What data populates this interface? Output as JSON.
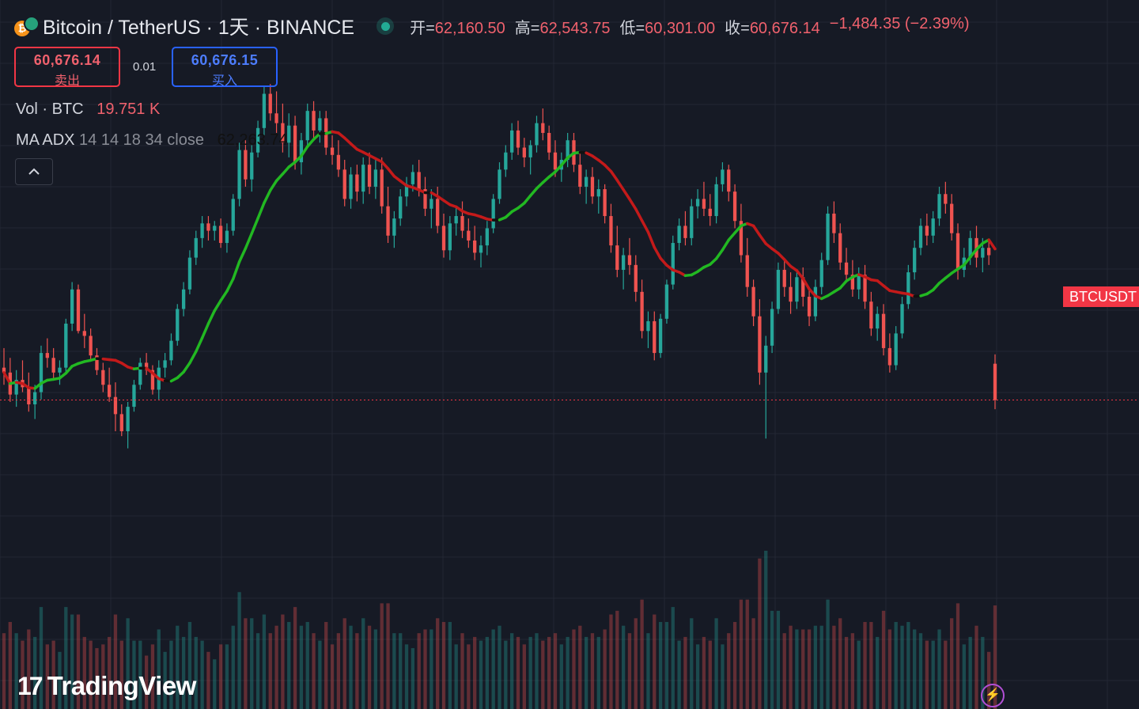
{
  "header": {
    "title": "Bitcoin / TetherUS · 1天 · BINANCE",
    "open_label": "开=",
    "open": "62,160.50",
    "high_label": "高=",
    "high": "62,543.75",
    "low_label": "低=",
    "low": "60,301.00",
    "close_label": "收=",
    "close": "60,676.14",
    "change": "−1,484.35 (−2.39%)"
  },
  "trade": {
    "sell_price": "60,676.14",
    "sell_label": "卖出",
    "spread": "0.01",
    "buy_price": "60,676.15",
    "buy_label": "买入"
  },
  "indicators": {
    "vol_name": "Vol · BTC",
    "vol_value": "19.751 K",
    "ma_name": "MA ADX",
    "ma_params": "14 14 18 34 close",
    "ma_value": "62,263.74",
    "collapse_icon": "chevron-up-icon"
  },
  "price_tag": "BTCUSDT",
  "logo": "TradingView",
  "colors": {
    "background": "#161a25",
    "up": "#26a69a",
    "down": "#ef5350",
    "ma_up": "#22b822",
    "ma_down": "#c41a1a",
    "ma_neutral": "#111111",
    "price_line": "#f23645"
  },
  "chart_data": {
    "type": "candlestick",
    "x_unit": "day (1天)",
    "y_unit": "USDT",
    "ylim": [
      50500,
      73800
    ],
    "last_price": 60676.14,
    "grid": true,
    "candles": [
      [
        62000,
        62800,
        61300,
        61800
      ],
      [
        61800,
        62400,
        60600,
        60900
      ],
      [
        60900,
        61900,
        60400,
        61500
      ],
      [
        61500,
        62300,
        61000,
        61200
      ],
      [
        61200,
        61800,
        60200,
        60500
      ],
      [
        60500,
        61300,
        59900,
        61000
      ],
      [
        61000,
        62900,
        60700,
        62600
      ],
      [
        62600,
        63200,
        62000,
        62400
      ],
      [
        62400,
        62800,
        61500,
        61800
      ],
      [
        61800,
        62300,
        61300,
        62000
      ],
      [
        62000,
        64000,
        61800,
        63800
      ],
      [
        63800,
        65500,
        63500,
        65200
      ],
      [
        65200,
        65400,
        63400,
        63500
      ],
      [
        63500,
        64200,
        62800,
        63300
      ],
      [
        63300,
        63600,
        62300,
        62500
      ],
      [
        62500,
        62800,
        61700,
        61900
      ],
      [
        61900,
        62200,
        61000,
        61300
      ],
      [
        61300,
        62000,
        60600,
        60800
      ],
      [
        60800,
        61400,
        59400,
        60100
      ],
      [
        60100,
        60500,
        59200,
        59400
      ],
      [
        59400,
        60600,
        58700,
        60400
      ],
      [
        60400,
        61500,
        60200,
        61300
      ],
      [
        61300,
        62400,
        61100,
        62200
      ],
      [
        62200,
        62600,
        61700,
        61900
      ],
      [
        61900,
        62100,
        60900,
        61100
      ],
      [
        61100,
        62300,
        60700,
        62000
      ],
      [
        62000,
        62600,
        61600,
        62300
      ],
      [
        62300,
        63400,
        62100,
        63100
      ],
      [
        63100,
        64600,
        62900,
        64400
      ],
      [
        64400,
        65500,
        64100,
        65200
      ],
      [
        65200,
        66800,
        65000,
        66500
      ],
      [
        66500,
        67600,
        66200,
        67300
      ],
      [
        67300,
        68200,
        66900,
        67900
      ],
      [
        67900,
        68200,
        67200,
        67600
      ],
      [
        67600,
        68000,
        67200,
        67800
      ],
      [
        67800,
        68100,
        66900,
        67100
      ],
      [
        67100,
        67900,
        66700,
        67600
      ],
      [
        67600,
        69100,
        67400,
        68900
      ],
      [
        68900,
        71200,
        68600,
        70900
      ],
      [
        70900,
        71300,
        69400,
        69700
      ],
      [
        69700,
        71100,
        69200,
        70800
      ],
      [
        70800,
        72100,
        70600,
        71800
      ],
      [
        71800,
        73500,
        71500,
        73200
      ],
      [
        73200,
        73600,
        72100,
        72400
      ],
      [
        72400,
        73300,
        71600,
        72000
      ],
      [
        72000,
        72800,
        70800,
        71200
      ],
      [
        71200,
        72400,
        70600,
        71900
      ],
      [
        71900,
        72300,
        70100,
        70400
      ],
      [
        70400,
        71600,
        69900,
        71300
      ],
      [
        71300,
        72800,
        71000,
        72500
      ],
      [
        72500,
        72900,
        71400,
        71700
      ],
      [
        71700,
        72500,
        71200,
        72200
      ],
      [
        72200,
        72500,
        70700,
        71000
      ],
      [
        71000,
        71500,
        70300,
        70700
      ],
      [
        70700,
        71300,
        69800,
        70100
      ],
      [
        70100,
        70500,
        68600,
        68900
      ],
      [
        68900,
        70200,
        68500,
        69900
      ],
      [
        69900,
        70300,
        68800,
        69200
      ],
      [
        69200,
        70600,
        68700,
        70300
      ],
      [
        70300,
        70800,
        69100,
        69400
      ],
      [
        69400,
        70500,
        68900,
        70100
      ],
      [
        70100,
        70600,
        68300,
        68600
      ],
      [
        68600,
        69400,
        67100,
        67400
      ],
      [
        67400,
        68400,
        66900,
        68100
      ],
      [
        68100,
        69300,
        67800,
        69000
      ],
      [
        69000,
        69800,
        68600,
        69500
      ],
      [
        69500,
        70300,
        69200,
        70000
      ],
      [
        70000,
        70500,
        69000,
        69300
      ],
      [
        69300,
        69800,
        68200,
        68500
      ],
      [
        68500,
        69300,
        67700,
        68900
      ],
      [
        68900,
        69400,
        67500,
        67800
      ],
      [
        67800,
        68300,
        66500,
        66800
      ],
      [
        66800,
        68200,
        66400,
        67900
      ],
      [
        67900,
        68600,
        67400,
        68200
      ],
      [
        68200,
        68800,
        67300,
        67600
      ],
      [
        67600,
        68100,
        66900,
        67200
      ],
      [
        67200,
        67800,
        66400,
        66700
      ],
      [
        66700,
        67400,
        66100,
        67000
      ],
      [
        67000,
        68000,
        66600,
        67700
      ],
      [
        67700,
        69100,
        67500,
        68900
      ],
      [
        68900,
        70400,
        68700,
        70100
      ],
      [
        70100,
        71100,
        69800,
        70800
      ],
      [
        70800,
        72000,
        70500,
        71700
      ],
      [
        71700,
        72100,
        70700,
        71000
      ],
      [
        71000,
        71400,
        70200,
        70600
      ],
      [
        70600,
        71300,
        69900,
        71100
      ],
      [
        71100,
        72300,
        70800,
        72000
      ],
      [
        72000,
        72600,
        71300,
        71600
      ],
      [
        71600,
        71900,
        70500,
        70800
      ],
      [
        70800,
        71300,
        69800,
        70100
      ],
      [
        70100,
        70800,
        69600,
        70500
      ],
      [
        70500,
        71600,
        70200,
        71300
      ],
      [
        71300,
        71600,
        70000,
        70300
      ],
      [
        70300,
        70800,
        69100,
        69400
      ],
      [
        69400,
        70100,
        68700,
        69800
      ],
      [
        69800,
        70200,
        68700,
        69000
      ],
      [
        69000,
        69700,
        68300,
        69300
      ],
      [
        69300,
        69500,
        67900,
        68200
      ],
      [
        68200,
        68700,
        66700,
        67000
      ],
      [
        67000,
        67800,
        65700,
        66000
      ],
      [
        66000,
        66900,
        65200,
        66600
      ],
      [
        66600,
        67300,
        65800,
        66200
      ],
      [
        66200,
        66600,
        64700,
        65100
      ],
      [
        65100,
        65600,
        63200,
        63500
      ],
      [
        63500,
        64300,
        62800,
        63900
      ],
      [
        63900,
        64300,
        62300,
        62600
      ],
      [
        62600,
        64200,
        62400,
        64000
      ],
      [
        64000,
        65600,
        63800,
        65400
      ],
      [
        65400,
        67400,
        65200,
        67100
      ],
      [
        67100,
        68100,
        66800,
        67800
      ],
      [
        67800,
        68400,
        67000,
        67300
      ],
      [
        67300,
        68900,
        67000,
        68600
      ],
      [
        68600,
        69300,
        68100,
        68900
      ],
      [
        68900,
        69600,
        68200,
        68500
      ],
      [
        68500,
        69100,
        67800,
        68200
      ],
      [
        68200,
        69800,
        67900,
        69500
      ],
      [
        69500,
        70400,
        69200,
        70100
      ],
      [
        70100,
        70300,
        68800,
        69200
      ],
      [
        69200,
        69500,
        67700,
        68000
      ],
      [
        68000,
        68700,
        66300,
        66600
      ],
      [
        66600,
        67300,
        64900,
        65300
      ],
      [
        65300,
        65600,
        63700,
        64100
      ],
      [
        64100,
        64800,
        61300,
        61800
      ],
      [
        61800,
        63300,
        59100,
        62900
      ],
      [
        62900,
        64700,
        62600,
        64400
      ],
      [
        64400,
        66300,
        64200,
        66000
      ],
      [
        66000,
        66400,
        64900,
        65300
      ],
      [
        65300,
        65900,
        64200,
        64700
      ],
      [
        64700,
        66000,
        64400,
        65700
      ],
      [
        65700,
        66100,
        64500,
        64900
      ],
      [
        64900,
        65300,
        63700,
        64100
      ],
      [
        64100,
        65600,
        63900,
        65300
      ],
      [
        65300,
        66700,
        65000,
        66400
      ],
      [
        66400,
        68600,
        66200,
        68300
      ],
      [
        68300,
        68800,
        67100,
        67500
      ],
      [
        67500,
        67900,
        66000,
        66300
      ],
      [
        66300,
        66900,
        65500,
        65800
      ],
      [
        65800,
        66400,
        64900,
        65200
      ],
      [
        65200,
        66100,
        64800,
        65800
      ],
      [
        65800,
        66200,
        64400,
        64700
      ],
      [
        64700,
        65100,
        63300,
        63600
      ],
      [
        63600,
        64500,
        63100,
        64200
      ],
      [
        64200,
        64600,
        62500,
        62800
      ],
      [
        62800,
        63400,
        61800,
        62100
      ],
      [
        62100,
        63700,
        61900,
        63400
      ],
      [
        63400,
        64900,
        63200,
        64600
      ],
      [
        64600,
        66200,
        64400,
        65900
      ],
      [
        65900,
        67200,
        65600,
        66900
      ],
      [
        66900,
        68100,
        66600,
        67800
      ],
      [
        67800,
        68300,
        67000,
        67400
      ],
      [
        67400,
        68400,
        67100,
        68100
      ],
      [
        68100,
        69400,
        67800,
        69100
      ],
      [
        69100,
        69600,
        68300,
        68700
      ],
      [
        68700,
        69100,
        67200,
        67500
      ],
      [
        67500,
        67900,
        65600,
        66000
      ],
      [
        66000,
        66900,
        65700,
        66500
      ],
      [
        66500,
        67600,
        66200,
        67300
      ],
      [
        67300,
        67800,
        66100,
        66500
      ],
      [
        66500,
        67300,
        65900,
        66900
      ],
      [
        66900,
        67200,
        66200,
        66600
      ],
      [
        62160.5,
        62543.75,
        60301,
        60676.14
      ]
    ]
  }
}
